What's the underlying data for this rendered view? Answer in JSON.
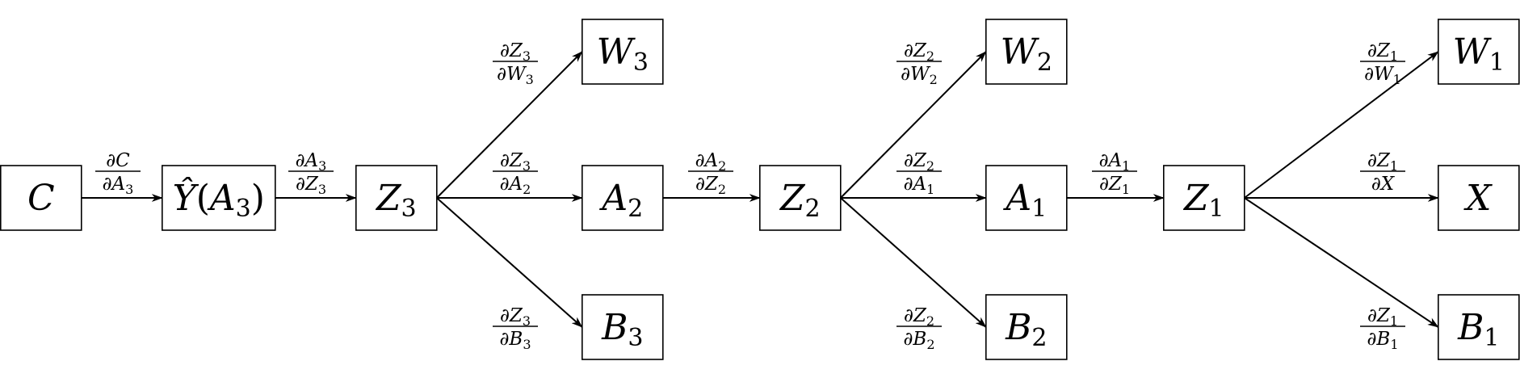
{
  "nodes": [
    {
      "id": "C",
      "name": "node-c",
      "base": "C",
      "sub": ""
    },
    {
      "id": "Y",
      "name": "node-y-hat-a3",
      "base": "Ŷ",
      "inner": "A",
      "innerSub": "3"
    },
    {
      "id": "Z3",
      "name": "node-z3",
      "base": "Z",
      "sub": "3"
    },
    {
      "id": "W3",
      "name": "node-w3",
      "base": "W",
      "sub": "3"
    },
    {
      "id": "A2",
      "name": "node-a2",
      "base": "A",
      "sub": "2"
    },
    {
      "id": "B3",
      "name": "node-b3",
      "base": "B",
      "sub": "3"
    },
    {
      "id": "Z2",
      "name": "node-z2",
      "base": "Z",
      "sub": "2"
    },
    {
      "id": "W2",
      "name": "node-w2",
      "base": "W",
      "sub": "2"
    },
    {
      "id": "A1",
      "name": "node-a1",
      "base": "A",
      "sub": "1"
    },
    {
      "id": "B2",
      "name": "node-b2",
      "base": "B",
      "sub": "2"
    },
    {
      "id": "Z1",
      "name": "node-z1",
      "base": "Z",
      "sub": "1"
    },
    {
      "id": "W1",
      "name": "node-w1",
      "base": "W",
      "sub": "1"
    },
    {
      "id": "X",
      "name": "node-x",
      "base": "X",
      "sub": ""
    },
    {
      "id": "B1",
      "name": "node-b1",
      "base": "B",
      "sub": "1"
    }
  ],
  "edges": [
    {
      "from": "C",
      "to": "Y",
      "num": {
        "b": "C",
        "s": ""
      },
      "den": {
        "b": "A",
        "s": "3"
      }
    },
    {
      "from": "Y",
      "to": "Z3",
      "num": {
        "b": "A",
        "s": "3"
      },
      "den": {
        "b": "Z",
        "s": "3"
      }
    },
    {
      "from": "Z3",
      "to": "W3",
      "num": {
        "b": "Z",
        "s": "3"
      },
      "den": {
        "b": "W",
        "s": "3"
      }
    },
    {
      "from": "Z3",
      "to": "A2",
      "num": {
        "b": "Z",
        "s": "3"
      },
      "den": {
        "b": "A",
        "s": "2"
      }
    },
    {
      "from": "Z3",
      "to": "B3",
      "num": {
        "b": "Z",
        "s": "3"
      },
      "den": {
        "b": "B",
        "s": "3"
      }
    },
    {
      "from": "A2",
      "to": "Z2",
      "num": {
        "b": "A",
        "s": "2"
      },
      "den": {
        "b": "Z",
        "s": "2"
      }
    },
    {
      "from": "Z2",
      "to": "W2",
      "num": {
        "b": "Z",
        "s": "2"
      },
      "den": {
        "b": "W",
        "s": "2"
      }
    },
    {
      "from": "Z2",
      "to": "A1",
      "num": {
        "b": "Z",
        "s": "2"
      },
      "den": {
        "b": "A",
        "s": "1"
      }
    },
    {
      "from": "Z2",
      "to": "B2",
      "num": {
        "b": "Z",
        "s": "2"
      },
      "den": {
        "b": "B",
        "s": "2"
      }
    },
    {
      "from": "A1",
      "to": "Z1",
      "num": {
        "b": "A",
        "s": "1"
      },
      "den": {
        "b": "Z",
        "s": "1"
      }
    },
    {
      "from": "Z1",
      "to": "W1",
      "num": {
        "b": "Z",
        "s": "1"
      },
      "den": {
        "b": "W",
        "s": "1"
      }
    },
    {
      "from": "Z1",
      "to": "X",
      "num": {
        "b": "Z",
        "s": "1"
      },
      "den": {
        "b": "X",
        "s": ""
      }
    },
    {
      "from": "Z1",
      "to": "B1",
      "num": {
        "b": "Z",
        "s": "1"
      },
      "den": {
        "b": "B",
        "s": "1"
      }
    }
  ],
  "partial_symbol": "∂",
  "open_paren": "(",
  "close_paren": ")"
}
